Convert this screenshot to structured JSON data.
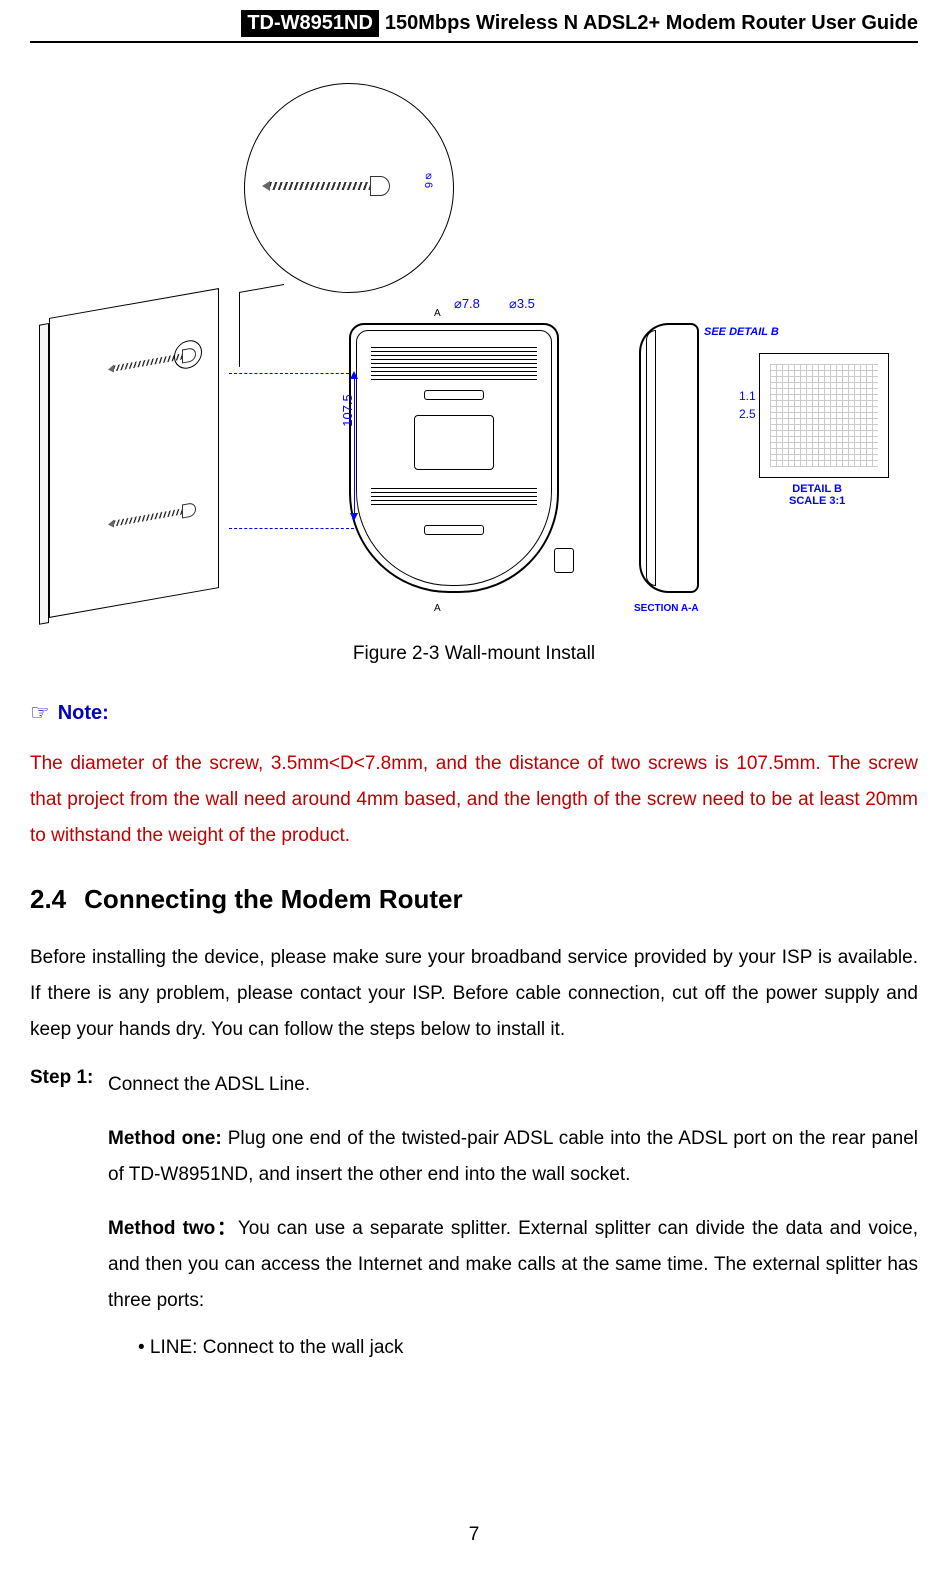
{
  "header": {
    "model": "TD-W8951ND",
    "title": "150Mbps Wireless N ADSL2+ Modem Router User Guide"
  },
  "figure": {
    "caption": "Figure 2-3 Wall-mount Install",
    "dims": {
      "d78": "⌀7.8",
      "d35": "⌀3.5",
      "d1075": "107.5",
      "d11": "1.1",
      "d25": "2.5",
      "phi6": "⌀6"
    },
    "labels": {
      "section": "SECTION A-A",
      "detail_b": "DETAIL B",
      "scale": "SCALE  3:1",
      "see_detail": "SEE DETAIL B",
      "letter_a": "A"
    },
    "colors": {
      "dim_blue": "#0000ff",
      "outline_black": "#000000"
    }
  },
  "note": {
    "label": "Note:",
    "text": "The diameter of the screw, 3.5mm<D<7.8mm, and the distance of two screws is 107.5mm. The screw that project from the wall need around 4mm based, and the length of the screw need to be at least 20mm to withstand the weight of the product.",
    "note_color": "#c00000",
    "label_color": "#0000c0"
  },
  "section": {
    "number": "2.4",
    "title": "Connecting the Modem Router",
    "intro": "Before installing the device, please make sure your broadband service provided by your ISP is available. If there is any problem, please contact your ISP. Before cable connection, cut off the power supply and keep your hands dry. You can follow the steps below to install it."
  },
  "step1": {
    "label": "Step 1:",
    "text": "Connect the ADSL Line.",
    "method1_label": "Method one:",
    "method1_text": " Plug one end of the twisted-pair ADSL cable into the ADSL port on the rear panel of TD-W8951ND, and insert the other end into the wall socket.",
    "method2_label": "Method two：",
    "method2_text": "You can use a separate splitter. External splitter can divide the data and voice, and then you can access the Internet and make calls at the same time. The external splitter has three ports:",
    "bullet1": "• LINE: Connect to the wall jack"
  },
  "page_number": "7"
}
